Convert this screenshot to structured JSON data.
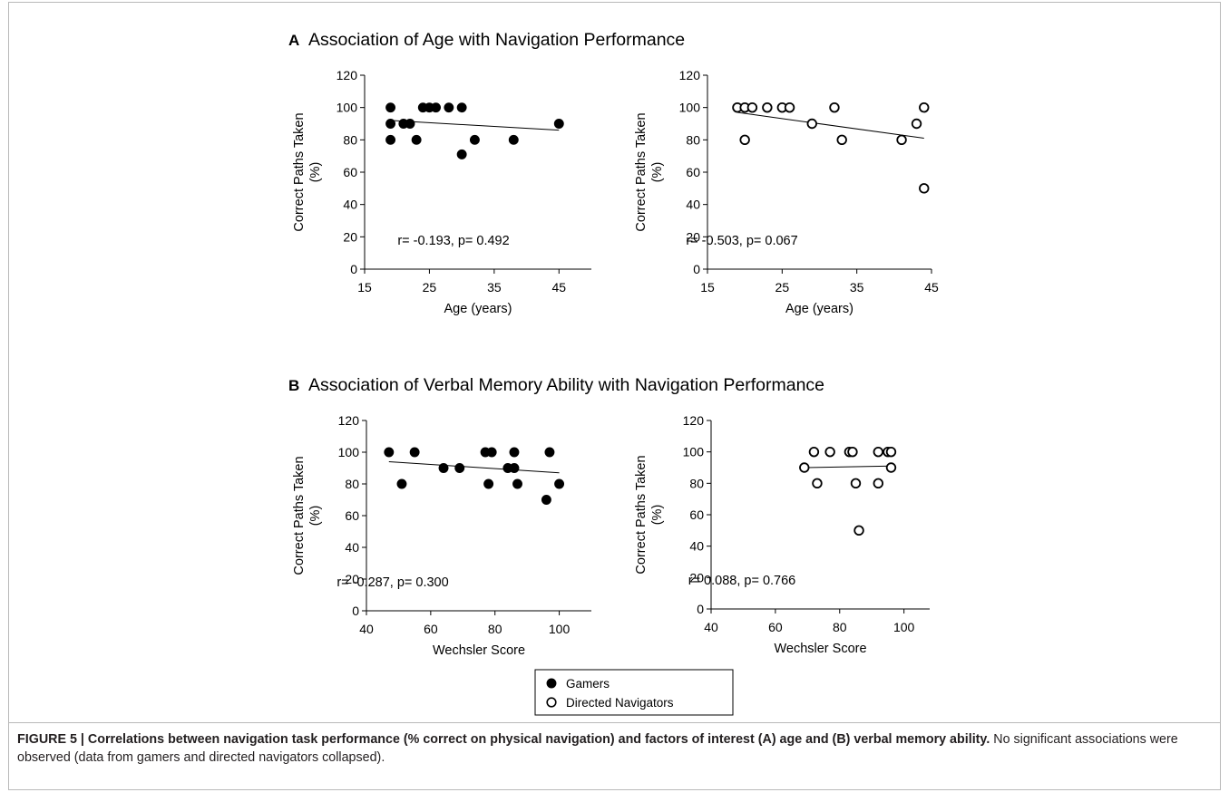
{
  "figure": {
    "caption": {
      "label": "FIGURE 5 | ",
      "bold": "Correlations between navigation task performance (% correct on physical navigation) and factors of interest (A) age and (B) verbal memory ability.",
      "text": " No significant associations were observed (data from gamers and directed navigators collapsed)."
    },
    "panels": [
      {
        "letter": "A",
        "title": "Association of Age with Navigation Performance"
      },
      {
        "letter": "B",
        "title": "Association of Verbal Memory Ability with Navigation Performance"
      }
    ],
    "legend": {
      "position": "bottom-center",
      "entries": [
        {
          "label": "Gamers",
          "marker": "filled-circle"
        },
        {
          "label": "Directed Navigators",
          "marker": "open-circle"
        }
      ]
    }
  },
  "colors": {
    "ink": "#000000",
    "open_fill": "#ffffff",
    "frame": "#b9b9b9",
    "caption_text": "#231f20"
  },
  "chart_data": [
    {
      "type": "scatter",
      "panel": "A",
      "group": "Gamers",
      "marker": "filled",
      "xlabel": "Age (years)",
      "ylabel": "Correct Paths Taken",
      "ylabel_unit": "(%)",
      "xlim": [
        15,
        50
      ],
      "ylim": [
        0,
        120
      ],
      "xticks": [
        15,
        25,
        35,
        45
      ],
      "yticks": [
        0,
        20,
        40,
        60,
        80,
        100,
        120
      ],
      "annotation": "r= -0.193, p= 0.492",
      "trendline": {
        "x": [
          19,
          45
        ],
        "y": [
          92,
          86
        ]
      },
      "points": [
        [
          19,
          100
        ],
        [
          19,
          90
        ],
        [
          19,
          80
        ],
        [
          21,
          90
        ],
        [
          22,
          90
        ],
        [
          23,
          80
        ],
        [
          24,
          100
        ],
        [
          25,
          100
        ],
        [
          26,
          100
        ],
        [
          28,
          100
        ],
        [
          30,
          100
        ],
        [
          30,
          71
        ],
        [
          32,
          80
        ],
        [
          38,
          80
        ],
        [
          45,
          90
        ]
      ]
    },
    {
      "type": "scatter",
      "panel": "A",
      "group": "Directed Navigators",
      "marker": "open",
      "xlabel": "Age (years)",
      "ylabel": "Correct Paths Taken",
      "ylabel_unit": "(%)",
      "xlim": [
        15,
        45
      ],
      "ylim": [
        0,
        120
      ],
      "xticks": [
        15,
        25,
        35,
        45
      ],
      "yticks": [
        0,
        20,
        40,
        60,
        80,
        100,
        120
      ],
      "annotation": "r= -0.503, p= 0.067",
      "trendline": {
        "x": [
          19,
          44
        ],
        "y": [
          97,
          81
        ]
      },
      "points": [
        [
          19,
          100
        ],
        [
          20,
          100
        ],
        [
          20,
          80
        ],
        [
          21,
          100
        ],
        [
          23,
          100
        ],
        [
          25,
          100
        ],
        [
          26,
          100
        ],
        [
          29,
          90
        ],
        [
          32,
          100
        ],
        [
          33,
          80
        ],
        [
          41,
          80
        ],
        [
          43,
          90
        ],
        [
          44,
          100
        ],
        [
          44,
          50
        ]
      ]
    },
    {
      "type": "scatter",
      "panel": "B",
      "group": "Gamers",
      "marker": "filled",
      "xlabel": "Wechsler Score",
      "ylabel": "Correct Paths Taken",
      "ylabel_unit": "(%)",
      "xlim": [
        40,
        110
      ],
      "ylim": [
        0,
        120
      ],
      "xticks": [
        40,
        60,
        80,
        100
      ],
      "yticks": [
        0,
        20,
        40,
        60,
        80,
        100,
        120
      ],
      "annotation": "r= -0.287, p= 0.300",
      "trendline": {
        "x": [
          47,
          100
        ],
        "y": [
          94,
          87
        ]
      },
      "points": [
        [
          47,
          100
        ],
        [
          51,
          80
        ],
        [
          55,
          100
        ],
        [
          64,
          90
        ],
        [
          69,
          90
        ],
        [
          77,
          100
        ],
        [
          78,
          80
        ],
        [
          79,
          100
        ],
        [
          84,
          90
        ],
        [
          86,
          100
        ],
        [
          86,
          90
        ],
        [
          87,
          80
        ],
        [
          96,
          70
        ],
        [
          97,
          100
        ],
        [
          100,
          80
        ]
      ]
    },
    {
      "type": "scatter",
      "panel": "B",
      "group": "Directed Navigators",
      "marker": "open",
      "xlabel": "Wechsler Score",
      "ylabel": "Correct Paths Taken",
      "ylabel_unit": "(%)",
      "xlim": [
        40,
        108
      ],
      "ylim": [
        0,
        120
      ],
      "xticks": [
        40,
        60,
        80,
        100
      ],
      "yticks": [
        0,
        20,
        40,
        60,
        80,
        100,
        120
      ],
      "annotation": "r= 0.088, p= 0.766",
      "trendline": {
        "x": [
          69,
          96
        ],
        "y": [
          90,
          91
        ]
      },
      "points": [
        [
          69,
          90
        ],
        [
          72,
          100
        ],
        [
          73,
          80
        ],
        [
          77,
          100
        ],
        [
          83,
          100
        ],
        [
          84,
          100
        ],
        [
          85,
          80
        ],
        [
          86,
          50
        ],
        [
          92,
          100
        ],
        [
          92,
          80
        ],
        [
          95,
          100
        ],
        [
          96,
          100
        ],
        [
          96,
          90
        ]
      ]
    }
  ]
}
